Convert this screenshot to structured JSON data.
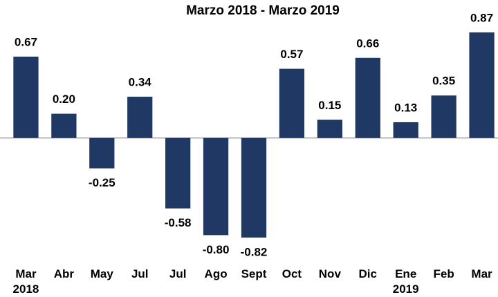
{
  "chart_data": {
    "type": "bar",
    "title": "Marzo 2018 - Marzo 2019",
    "categories": [
      "Mar 2018",
      "Abr",
      "May",
      "Jul",
      "Jul",
      "Ago",
      "Sept",
      "Oct",
      "Nov",
      "Dic",
      "Ene 2019",
      "Feb",
      "Mar"
    ],
    "values": [
      0.67,
      0.2,
      -0.25,
      0.34,
      -0.58,
      -0.8,
      -0.82,
      0.57,
      0.15,
      0.66,
      0.13,
      0.35,
      0.87
    ],
    "value_labels": [
      "0.67",
      "0.20",
      "-0.25",
      "0.34",
      "-0.58",
      "-0.80",
      "-0.82",
      "0.57",
      "0.15",
      "0.66",
      "0.13",
      "0.35",
      "0.87"
    ],
    "color": "#1f3864",
    "ylim": [
      -0.9,
      1.0
    ]
  }
}
